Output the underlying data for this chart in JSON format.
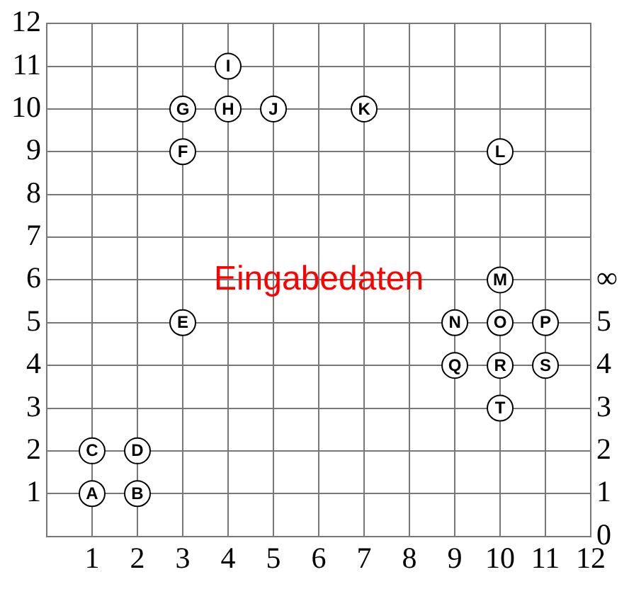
{
  "chart_data": {
    "type": "scatter",
    "x": [
      1,
      2,
      1,
      2,
      3,
      3,
      3,
      4,
      4,
      5,
      7,
      10,
      10,
      9,
      10,
      11,
      9,
      10,
      11,
      10
    ],
    "values": [
      1,
      1,
      2,
      2,
      5,
      9,
      10,
      10,
      11,
      10,
      10,
      9,
      6,
      5,
      5,
      5,
      4,
      4,
      4,
      3
    ],
    "value_labels": [
      "A",
      "B",
      "C",
      "D",
      "E",
      "F",
      "G",
      "H",
      "I",
      "J",
      "K",
      "L",
      "M",
      "N",
      "O",
      "P",
      "Q",
      "R",
      "S",
      "T"
    ],
    "color": "#000000",
    "marker": "circle",
    "xlim": [
      0,
      12
    ],
    "xticks": [
      1,
      2,
      3,
      4,
      5,
      6,
      7,
      8,
      9,
      10,
      11,
      12
    ],
    "ylim": [
      0,
      12
    ],
    "yticks": [
      1,
      2,
      3,
      4,
      5,
      6,
      7,
      8,
      9,
      10,
      11,
      12
    ],
    "y2lim": [
      0,
      12
    ],
    "y2ticks": [
      0,
      1,
      2,
      3,
      4,
      5,
      {
        "value": 6,
        "label": "∞"
      }
    ],
    "grid": true,
    "annotations": [
      "Eingabedaten"
    ]
  }
}
